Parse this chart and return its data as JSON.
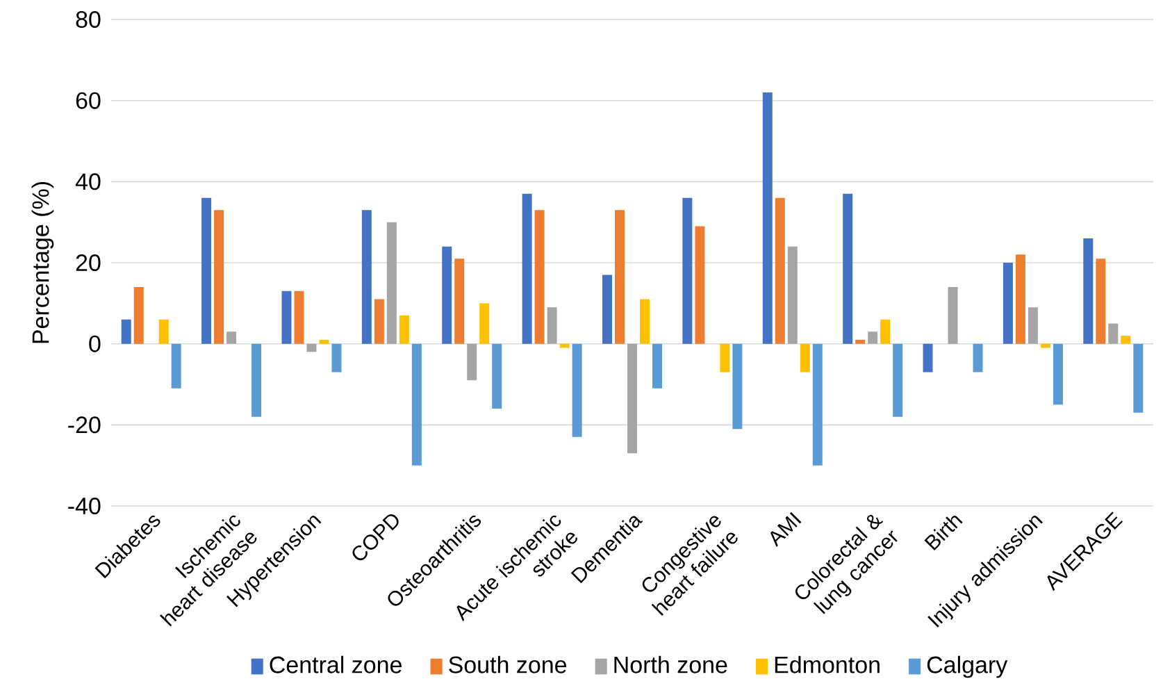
{
  "chart_data": {
    "type": "bar",
    "ylabel": "Percentage (%)",
    "categories": [
      "Diabetes",
      "Ischemic heart disease",
      "Hypertension",
      "COPD",
      "Osteoarthritis",
      "Acute ischemic stroke",
      "Dementia",
      "Congestive heart failure",
      "AMI",
      "Colorectal & lung cancer",
      "Birth",
      "Injury admission",
      "AVERAGE"
    ],
    "series": [
      {
        "name": "Central zone",
        "color": "#4472c4",
        "values": [
          6,
          36,
          13,
          33,
          24,
          37,
          17,
          36,
          62,
          37,
          -7,
          20,
          26
        ]
      },
      {
        "name": "South zone",
        "color": "#ed7d31",
        "values": [
          14,
          33,
          13,
          11,
          21,
          33,
          33,
          29,
          36,
          1,
          0,
          22,
          21
        ]
      },
      {
        "name": "North zone",
        "color": "#a5a5a5",
        "values": [
          0,
          3,
          -2,
          30,
          -9,
          9,
          -27,
          0,
          24,
          3,
          14,
          9,
          5
        ]
      },
      {
        "name": "Edmonton",
        "color": "#ffc000",
        "values": [
          6,
          0,
          1,
          7,
          10,
          -1,
          11,
          -7,
          -7,
          6,
          0,
          -1,
          2
        ]
      },
      {
        "name": "Calgary",
        "color": "#5b9bd5",
        "values": [
          -11,
          -18,
          -7,
          -30,
          -16,
          -23,
          -11,
          -21,
          -30,
          -18,
          -7,
          -15,
          -17
        ]
      }
    ],
    "ylim": [
      -40,
      80
    ],
    "yticks": [
      -40,
      -20,
      0,
      20,
      40,
      60,
      80
    ],
    "grid": "y",
    "legend": "bottom"
  }
}
